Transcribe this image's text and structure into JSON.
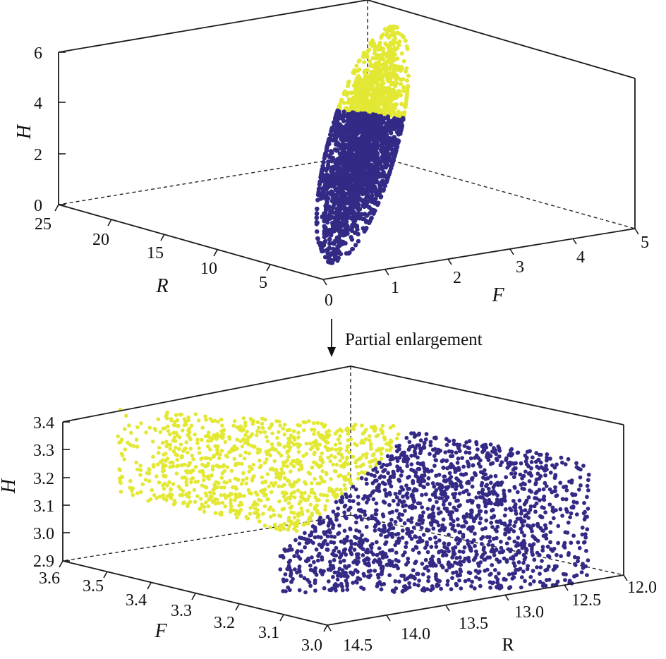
{
  "annotation": {
    "text": "Partial enlargement"
  },
  "colors": {
    "class_a": "#e2e833",
    "class_b": "#332a86",
    "axes": "#1a1a1a"
  },
  "chart_data": [
    {
      "type": "scatter",
      "projection": "3d",
      "xlabel": "F",
      "ylabel": "R",
      "zlabel": "H",
      "xlim": [
        0,
        5
      ],
      "ylim": [
        0,
        25
      ],
      "zlim": [
        0,
        6
      ],
      "x_ticks": [
        "0",
        "1",
        "2",
        "3",
        "4",
        "5"
      ],
      "y_ticks": [
        "5",
        "10",
        "15",
        "20",
        "25"
      ],
      "z_ticks": [
        "0",
        "2",
        "4",
        "6"
      ],
      "grid": false,
      "legend": false,
      "series": [
        {
          "color": "#e2e833",
          "F_range": [
            2.9,
            3.9
          ],
          "R_range": [
            11,
            15
          ],
          "H_range": [
            3.2,
            5.6
          ]
        },
        {
          "color": "#332a86",
          "F_range": [
            2.2,
            3.7
          ],
          "R_range": [
            11,
            16
          ],
          "H_range": [
            0.7,
            3.3
          ]
        }
      ]
    },
    {
      "type": "scatter",
      "projection": "3d",
      "xlabel": "R",
      "ylabel": "F",
      "zlabel": "H",
      "xlim": [
        12.0,
        14.5
      ],
      "ylim": [
        3.0,
        3.6
      ],
      "zlim": [
        2.9,
        3.4
      ],
      "x_ticks": [
        "14.5",
        "14.0",
        "13.5",
        "13.0",
        "12.5",
        "12.0"
      ],
      "y_ticks": [
        "3.0",
        "3.1",
        "3.2",
        "3.3",
        "3.4",
        "3.5",
        "3.6"
      ],
      "z_ticks": [
        "2.9",
        "3.0",
        "3.1",
        "3.2",
        "3.3",
        "3.4"
      ],
      "grid": false,
      "legend": false,
      "series": [
        {
          "color": "#e2e833",
          "H_range": [
            3.1,
            3.4
          ]
        },
        {
          "color": "#332a86",
          "H_range": [
            2.9,
            3.3
          ]
        }
      ]
    }
  ]
}
